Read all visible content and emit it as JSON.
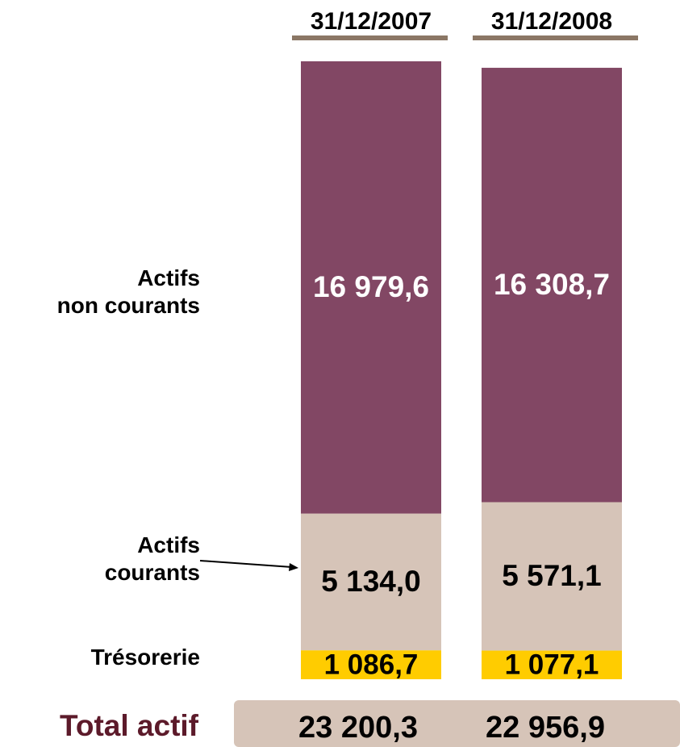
{
  "chart_data": {
    "type": "stacked_bar",
    "categories": [
      "31/12/2007",
      "31/12/2008"
    ],
    "series": [
      {
        "name": "Trésorerie",
        "color": "#ffcc00",
        "values": [
          1086.7,
          1077.1
        ],
        "value_labels": [
          "1 086,7",
          "1 077,1"
        ]
      },
      {
        "name": "Actifs\ncourants",
        "color": "#d6c4b8",
        "values": [
          5134.0,
          5571.1
        ],
        "value_labels": [
          "5 134,0",
          "5 571,1"
        ]
      },
      {
        "name": "Actifs\nnon courants",
        "color": "#824764",
        "values": [
          16979.6,
          16308.7
        ],
        "value_labels": [
          "16 979,6",
          "16 308,7"
        ]
      }
    ],
    "total": {
      "label": "Total actif",
      "values": [
        23200.3,
        22956.9
      ],
      "value_labels": [
        "23 200,3",
        "22 956,9"
      ]
    }
  }
}
